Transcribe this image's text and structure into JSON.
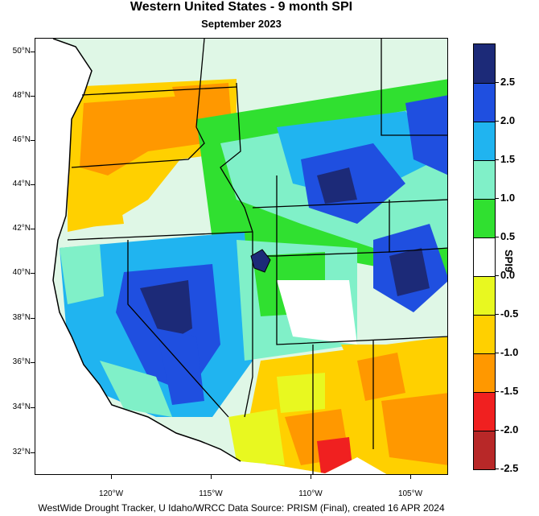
{
  "title": "Western United States - 9 month SPI",
  "subtitle": "September 2023",
  "footer": "WestWide Drought Tracker, U Idaho/WRCC Data Source: PRISM (Final), created 16 APR 2024",
  "lat_labels": [
    "50°N",
    "48°N",
    "46°N",
    "44°N",
    "42°N",
    "40°N",
    "38°N",
    "36°N",
    "34°N",
    "32°N"
  ],
  "lon_labels": [
    "120°W",
    "115°W",
    "110°W",
    "105°W"
  ],
  "colorbar": {
    "title": "SPI9",
    "labels": [
      "2.5",
      "2.0",
      "1.5",
      "1.0",
      "0.5",
      "0.0",
      "-0.5",
      "-1.0",
      "-1.5",
      "-2.0",
      "-2.5"
    ],
    "colors": [
      "#1c2a78",
      "#1f4fe0",
      "#20b4f0",
      "#80f0c8",
      "#30e030",
      "#ffffff",
      "#e8f820",
      "#ffd000",
      "#ff9800",
      "#f02020",
      "#b82828"
    ]
  }
}
